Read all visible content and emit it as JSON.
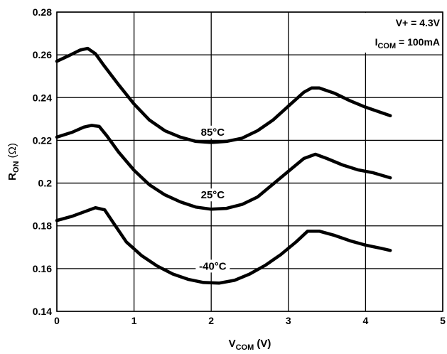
{
  "chart_data": {
    "type": "line",
    "xlabel": {
      "main": "V",
      "sub": "COM",
      "unit": " (V)"
    },
    "ylabel": {
      "main": "R",
      "sub": "ON",
      "unit": " (Ω)"
    },
    "xlim": [
      0,
      5
    ],
    "ylim": [
      0.14,
      0.28
    ],
    "x_ticks": [
      "0",
      "1",
      "2",
      "3",
      "4",
      "5"
    ],
    "y_ticks": [
      "0.14",
      "0.16",
      "0.18",
      "0.2",
      "0.22",
      "0.24",
      "0.26",
      "0.28"
    ],
    "grid": true,
    "annotation": {
      "line1": "V+ = 4.3V",
      "line2_main": "I",
      "line2_sub": "COM",
      "line2_rest": " = 100mA"
    },
    "series": [
      {
        "name": "85°C",
        "label_at": [
          2.02,
          0.2222
        ],
        "points": [
          [
            0,
            0.257
          ],
          [
            0.15,
            0.2595
          ],
          [
            0.3,
            0.2622
          ],
          [
            0.4,
            0.263
          ],
          [
            0.5,
            0.2605
          ],
          [
            0.6,
            0.2555
          ],
          [
            0.8,
            0.246
          ],
          [
            1.0,
            0.237
          ],
          [
            1.2,
            0.2295
          ],
          [
            1.4,
            0.2245
          ],
          [
            1.6,
            0.2215
          ],
          [
            1.8,
            0.2195
          ],
          [
            2.0,
            0.219
          ],
          [
            2.2,
            0.2195
          ],
          [
            2.4,
            0.221
          ],
          [
            2.6,
            0.2245
          ],
          [
            2.8,
            0.2295
          ],
          [
            3.0,
            0.236
          ],
          [
            3.2,
            0.2425
          ],
          [
            3.3,
            0.2445
          ],
          [
            3.4,
            0.2445
          ],
          [
            3.6,
            0.242
          ],
          [
            3.8,
            0.2385
          ],
          [
            4.0,
            0.2355
          ],
          [
            4.2,
            0.233
          ],
          [
            4.32,
            0.2315
          ]
        ]
      },
      {
        "name": "25°C",
        "label_at": [
          2.02,
          0.1928
        ],
        "points": [
          [
            0,
            0.2215
          ],
          [
            0.2,
            0.2238
          ],
          [
            0.35,
            0.2262
          ],
          [
            0.45,
            0.227
          ],
          [
            0.55,
            0.2265
          ],
          [
            0.65,
            0.222
          ],
          [
            0.8,
            0.2145
          ],
          [
            1.0,
            0.206
          ],
          [
            1.2,
            0.1992
          ],
          [
            1.4,
            0.1945
          ],
          [
            1.6,
            0.1912
          ],
          [
            1.8,
            0.1888
          ],
          [
            2.0,
            0.1878
          ],
          [
            2.2,
            0.1882
          ],
          [
            2.4,
            0.19
          ],
          [
            2.6,
            0.1935
          ],
          [
            2.8,
            0.1995
          ],
          [
            3.0,
            0.2055
          ],
          [
            3.2,
            0.2115
          ],
          [
            3.35,
            0.2135
          ],
          [
            3.5,
            0.2115
          ],
          [
            3.7,
            0.2085
          ],
          [
            3.9,
            0.2062
          ],
          [
            4.1,
            0.2048
          ],
          [
            4.32,
            0.2025
          ]
        ]
      },
      {
        "name": "-40°C",
        "label_at": [
          2.02,
          0.1595
        ],
        "points": [
          [
            0,
            0.1825
          ],
          [
            0.2,
            0.1845
          ],
          [
            0.35,
            0.1865
          ],
          [
            0.5,
            0.1885
          ],
          [
            0.62,
            0.1875
          ],
          [
            0.75,
            0.1805
          ],
          [
            0.9,
            0.1725
          ],
          [
            1.1,
            0.166
          ],
          [
            1.3,
            0.1612
          ],
          [
            1.5,
            0.1575
          ],
          [
            1.7,
            0.155
          ],
          [
            1.9,
            0.1535
          ],
          [
            2.1,
            0.1532
          ],
          [
            2.3,
            0.1545
          ],
          [
            2.5,
            0.1575
          ],
          [
            2.7,
            0.1615
          ],
          [
            2.9,
            0.1665
          ],
          [
            3.1,
            0.1725
          ],
          [
            3.25,
            0.1775
          ],
          [
            3.4,
            0.1775
          ],
          [
            3.6,
            0.1755
          ],
          [
            3.8,
            0.173
          ],
          [
            4.0,
            0.171
          ],
          [
            4.2,
            0.1695
          ],
          [
            4.32,
            0.1685
          ]
        ]
      }
    ]
  }
}
